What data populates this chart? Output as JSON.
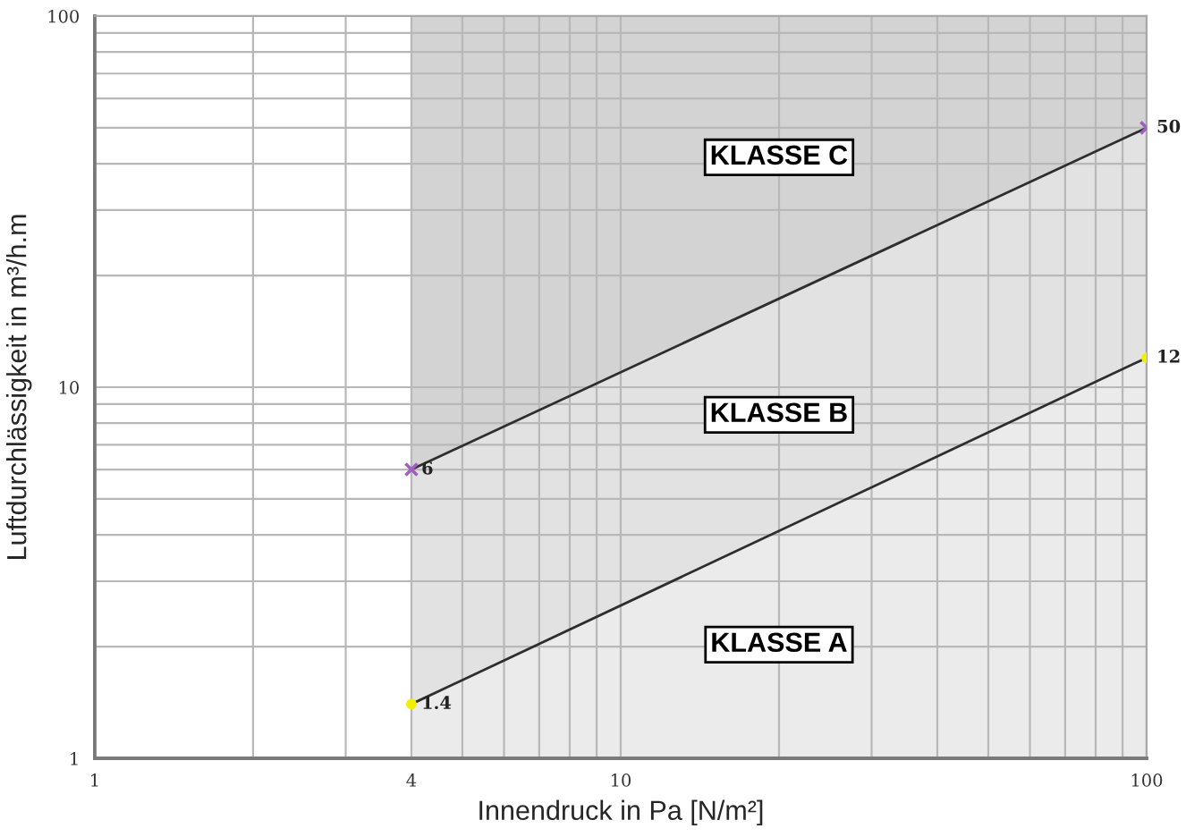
{
  "chart_data": {
    "type": "area",
    "xlabel": "Innendruck in Pa [N/m²]",
    "ylabel": "Luftdurchlässigkeit in m³/h.m",
    "log": "xy",
    "xlim": [
      1,
      100
    ],
    "ylim": [
      1,
      100
    ],
    "xticks": [
      1,
      {
        "value": 2,
        "label": null
      },
      {
        "value": 3,
        "label": null
      },
      4,
      {
        "value": 5,
        "label": null
      },
      {
        "value": 6,
        "label": null
      },
      {
        "value": 7,
        "label": null
      },
      {
        "value": 8,
        "label": null
      },
      {
        "value": 9,
        "label": null
      },
      10,
      {
        "value": 20,
        "label": null
      },
      {
        "value": 30,
        "label": null
      },
      {
        "value": 40,
        "label": null
      },
      {
        "value": 50,
        "label": null
      },
      {
        "value": 60,
        "label": null
      },
      {
        "value": 70,
        "label": null
      },
      {
        "value": 80,
        "label": null
      },
      {
        "value": 90,
        "label": null
      },
      100
    ],
    "yticks": [
      1,
      {
        "value": 2,
        "label": null
      },
      {
        "value": 3,
        "label": null
      },
      {
        "value": 4,
        "label": null
      },
      {
        "value": 5,
        "label": null
      },
      {
        "value": 6,
        "label": null
      },
      {
        "value": 7,
        "label": null
      },
      {
        "value": 8,
        "label": null
      },
      {
        "value": 9,
        "label": null
      },
      10,
      {
        "value": 20,
        "label": null
      },
      {
        "value": 30,
        "label": null
      },
      {
        "value": 40,
        "label": null
      },
      {
        "value": 50,
        "label": null
      },
      {
        "value": 60,
        "label": null
      },
      {
        "value": 70,
        "label": null
      },
      {
        "value": 80,
        "label": null
      },
      {
        "value": 90,
        "label": null
      },
      100
    ],
    "grid": true,
    "bands": [
      {
        "axis": "x",
        "from": 4,
        "to": 100,
        "color": "#d3d3d3"
      }
    ],
    "x": [
      4,
      100
    ],
    "series": [
      {
        "values": [
          6,
          50
        ],
        "color": "#e2e2e2",
        "colors": [
          "#a060c0",
          "#a060c0"
        ],
        "marker": "cross",
        "value_labels": [
          "6",
          "50"
        ]
      },
      {
        "values": [
          1.4,
          12
        ],
        "color": "#ebebeb",
        "colors": [
          "#f0f000",
          "#f0f000"
        ],
        "marker": "circle",
        "value_labels": [
          "1.4",
          "12"
        ]
      }
    ],
    "annotations": [
      "KLASSE C",
      "KLASSE B",
      "KLASSE A"
    ]
  }
}
